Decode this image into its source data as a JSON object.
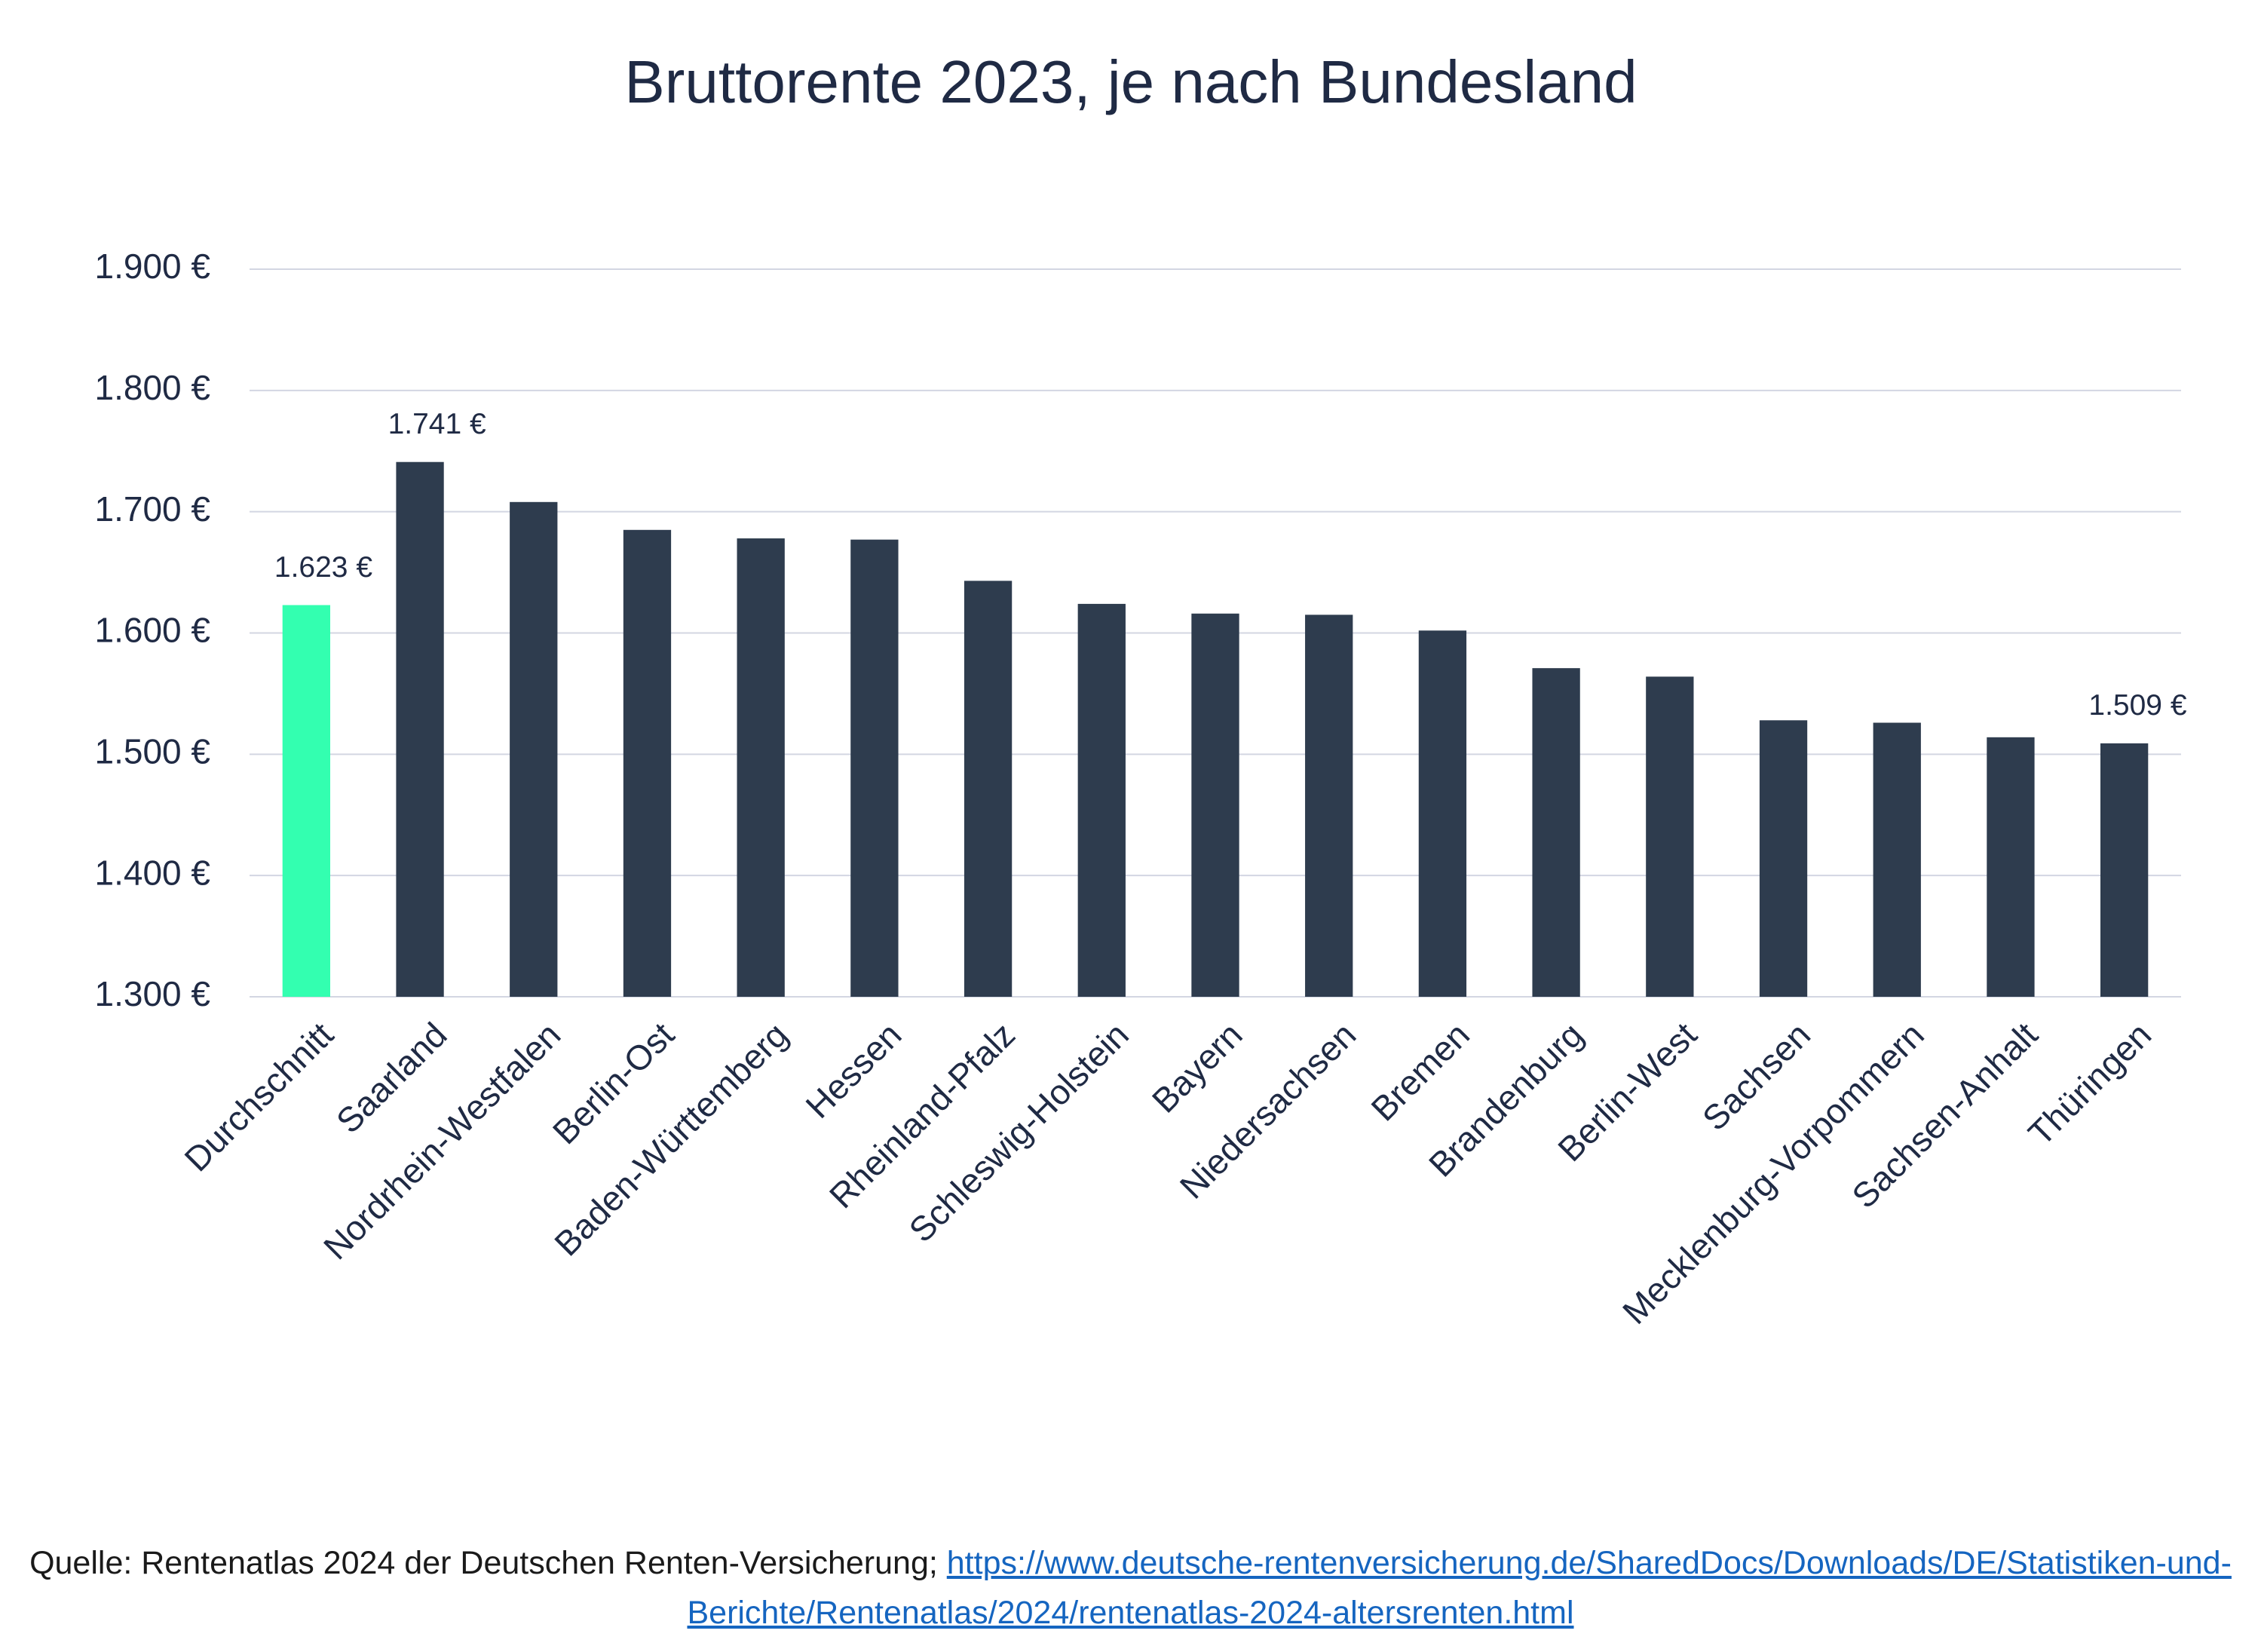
{
  "chart_data": {
    "type": "bar",
    "title": "Bruttorente 2023, je nach Bundesland",
    "categories": [
      "Durchschnitt",
      "Saarland",
      "Nordrhein-Westfalen",
      "Berlin-Ost",
      "Baden-Württemberg",
      "Hessen",
      "Rheinland-Pfalz",
      "Schleswig-Holstein",
      "Bayern",
      "Niedersachsen",
      "Bremen",
      "Brandenburg",
      "Berlin-West",
      "Sachsen",
      "Mecklenburg-Vorpommern",
      "Sachsen-Anhalt",
      "Thüringen"
    ],
    "values": [
      1623,
      1741,
      1708,
      1685,
      1678,
      1677,
      1643,
      1624,
      1616,
      1615,
      1602,
      1571,
      1564,
      1528,
      1526,
      1514,
      1509
    ],
    "value_labels": [
      "1.623 €",
      "1.741 €",
      null,
      null,
      null,
      null,
      null,
      null,
      null,
      null,
      null,
      null,
      null,
      null,
      null,
      null,
      "1.509 €"
    ],
    "colors": [
      "#33ffb0",
      "#2e3c4e",
      "#2e3c4e",
      "#2e3c4e",
      "#2e3c4e",
      "#2e3c4e",
      "#2e3c4e",
      "#2e3c4e",
      "#2e3c4e",
      "#2e3c4e",
      "#2e3c4e",
      "#2e3c4e",
      "#2e3c4e",
      "#2e3c4e",
      "#2e3c4e",
      "#2e3c4e",
      "#2e3c4e"
    ],
    "ylim": [
      1300,
      1900
    ],
    "yticks": [
      {
        "value": 1300,
        "label": "1.300 €"
      },
      {
        "value": 1400,
        "label": "1.400 €"
      },
      {
        "value": 1500,
        "label": "1.500 €"
      },
      {
        "value": 1600,
        "label": "1.600 €"
      },
      {
        "value": 1700,
        "label": "1.700 €"
      },
      {
        "value": 1800,
        "label": "1.800 €"
      },
      {
        "value": 1900,
        "label": "1.900 €"
      }
    ],
    "grid": true,
    "source": {
      "text": "Quelle: Rentenatlas 2024 der Deutschen Renten-Versicherung; ",
      "link": "https://www.deutsche-rentenversicherung.de/SharedDocs/Downloads/DE/Statistiken-und-Berichte/Rentenatlas/2024/rentenatlas-2024-altersrenten.html"
    }
  }
}
